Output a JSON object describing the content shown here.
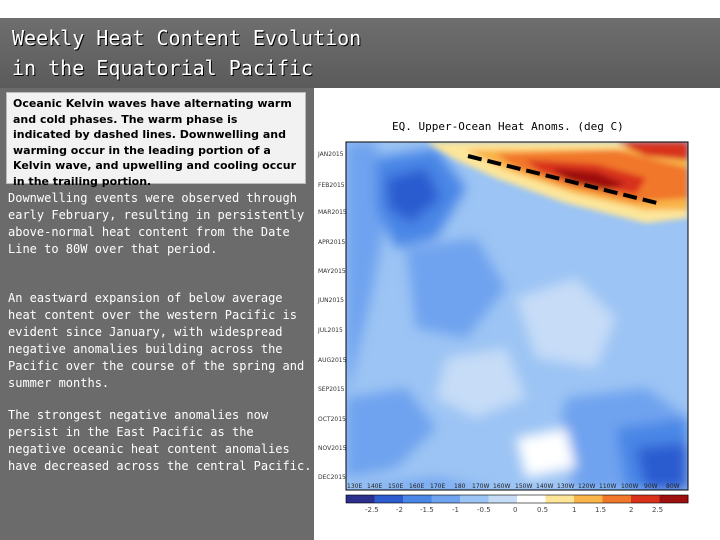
{
  "title": {
    "line1": "Weekly Heat Content Evolution",
    "line2": "in the Equatorial Pacific"
  },
  "kelvin_note": "Oceanic Kelvin waves have alternating warm and cold phases. The warm phase is indicated by dashed lines. Downwelling and warming occur in the leading portion of a Kelvin wave, and upwelling and cooling occur in the trailing portion.",
  "paragraphs": [
    "Downwelling events were observed through early February, resulting in persistently above-normal heat content from the Date Line to 80W over that period.",
    "An eastward expansion of below average heat content over the western Pacific is evident since January, with widespread negative anomalies building across the Pacific over the course of the spring and summer months.",
    "The strongest negative anomalies now persist in the East Pacific as the negative oceanic heat content anomalies have decreased across the central Pacific."
  ],
  "chart": {
    "title": "EQ. Upper-Ocean Heat Anoms. (deg C)",
    "y_labels": [
      "JAN2015",
      "FEB2015",
      "MAR2015",
      "APR2015",
      "MAY2015",
      "JUN2015",
      "JUL2015",
      "AUG2015",
      "SEP2015",
      "OCT2015",
      "NOV2015",
      "DEC2015"
    ],
    "x_labels": [
      "130E",
      "140E",
      "150E",
      "160E",
      "170E",
      "180",
      "170W",
      "160W",
      "150W",
      "140W",
      "130W",
      "120W",
      "110W",
      "100W",
      "90W",
      "80W"
    ],
    "colorbar_labels": [
      "-2.5",
      "-2",
      "-1.5",
      "-1",
      "-0.5",
      "0",
      "0.5",
      "1",
      "1.5",
      "2",
      "2.5"
    ],
    "colorbar_colors": [
      "#2b2f8e",
      "#2c5bd0",
      "#4a86e6",
      "#6fa3ef",
      "#9cc4f4",
      "#c6dcf7",
      "#ffffff",
      "#fde69a",
      "#f9b44a",
      "#f1772b",
      "#d9301c",
      "#9e1010"
    ]
  }
}
